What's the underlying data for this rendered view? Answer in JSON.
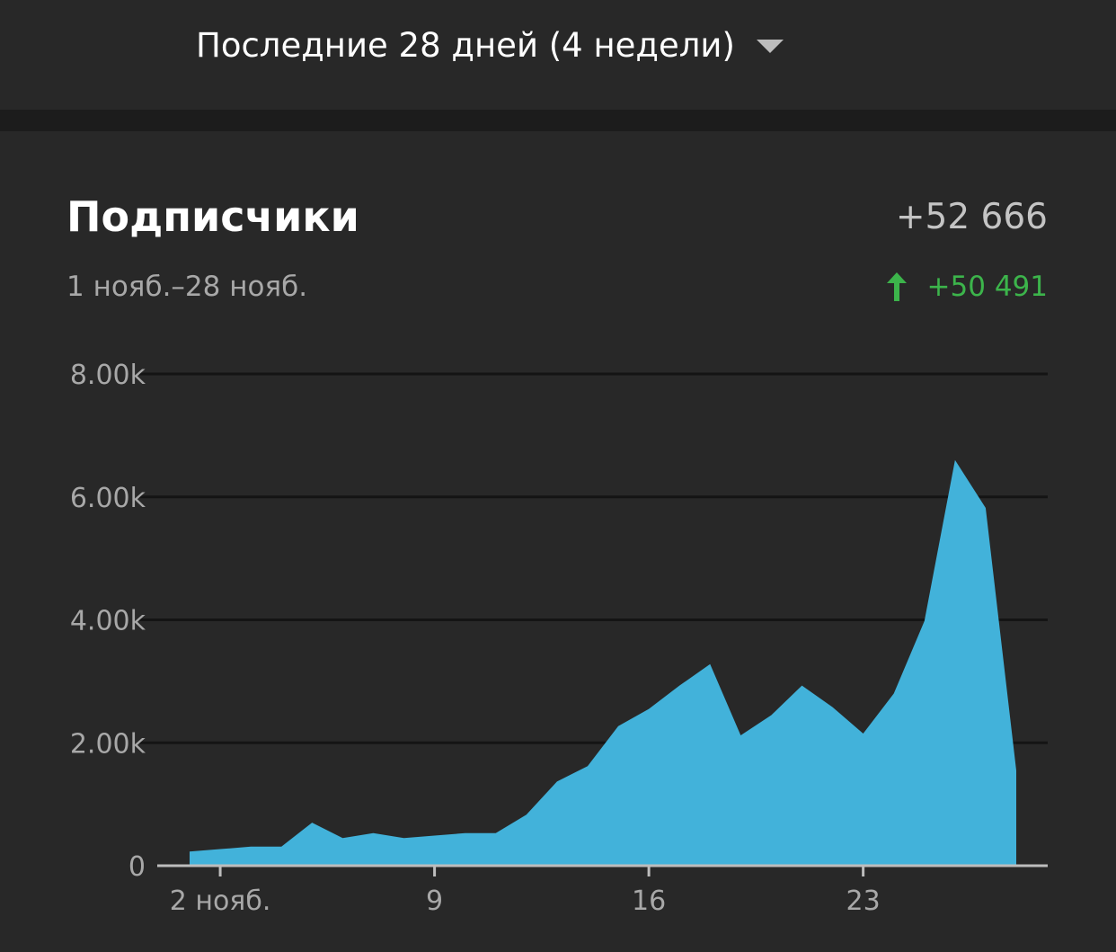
{
  "header": {
    "range_label": "Последние 28 дней (4 недели)"
  },
  "metric": {
    "title": "Подписчики",
    "total": "+52 666",
    "date_range": "1 нояб.–28 нояб.",
    "change": "+50 491"
  },
  "colors": {
    "area": "#42b2da",
    "positive": "#3cb44b",
    "gridline": "#141414",
    "baseline": "#bdbdbd"
  },
  "chart_data": {
    "type": "area",
    "x": [
      1,
      2,
      3,
      4,
      5,
      6,
      7,
      8,
      9,
      10,
      11,
      12,
      13,
      14,
      15,
      16,
      17,
      18,
      19,
      20,
      21,
      22,
      23,
      24,
      25,
      26,
      27,
      28
    ],
    "values": [
      230,
      270,
      310,
      310,
      700,
      450,
      530,
      450,
      490,
      530,
      530,
      830,
      1370,
      1620,
      2270,
      2550,
      2930,
      3280,
      2120,
      2450,
      2930,
      2580,
      2150,
      2800,
      3980,
      6600,
      5820,
      1550
    ],
    "ylim": [
      0,
      8000
    ],
    "yticks": [
      0,
      2000,
      4000,
      6000,
      8000
    ],
    "ytick_labels": [
      "0",
      "2.00k",
      "4.00k",
      "6.00k",
      "8.00k"
    ],
    "xticks": [
      2,
      9,
      16,
      23
    ],
    "xtick_labels": [
      "2 нояб.",
      "9",
      "16",
      "23"
    ],
    "grid": true,
    "xlabel": "",
    "ylabel": ""
  }
}
